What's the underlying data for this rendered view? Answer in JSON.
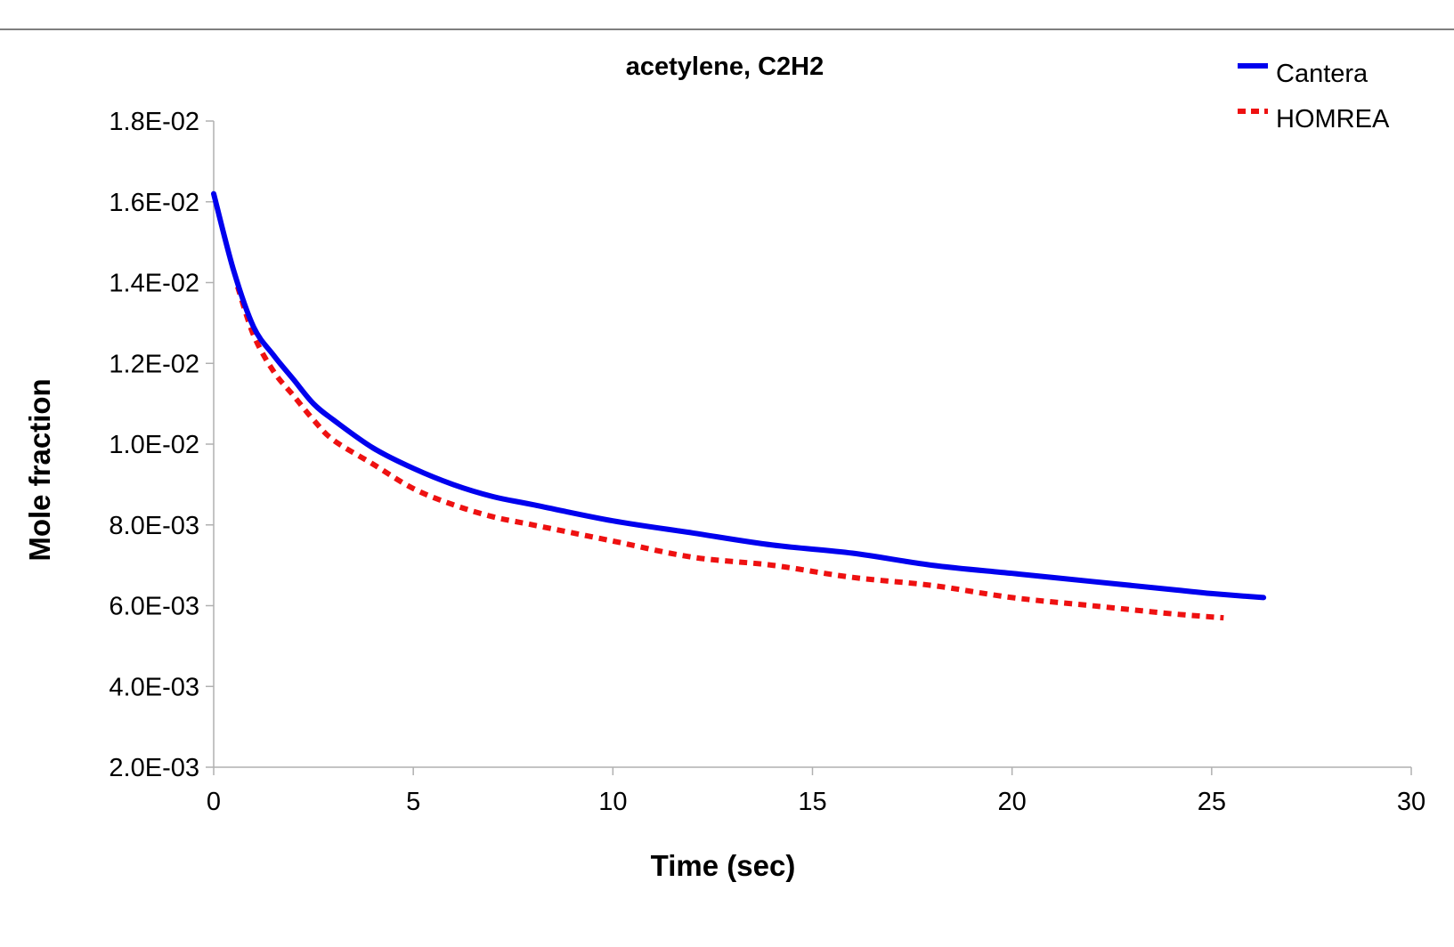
{
  "chart_data": {
    "type": "line",
    "title": "acetylene, C2H2",
    "xlabel": "Time (sec)",
    "ylabel": "Mole fraction",
    "xlim": [
      0,
      30
    ],
    "ylim": [
      0.002,
      0.018
    ],
    "x_ticks": [
      0,
      5,
      10,
      15,
      20,
      25,
      30
    ],
    "x_tick_labels": [
      "0",
      "5",
      "10",
      "15",
      "20",
      "25",
      "30"
    ],
    "y_ticks": [
      0.002,
      0.004,
      0.006,
      0.008,
      0.01,
      0.012,
      0.014,
      0.016,
      0.018
    ],
    "y_tick_labels": [
      "2.0E-03",
      "4.0E-03",
      "6.0E-03",
      "8.0E-03",
      "1.0E-02",
      "1.2E-02",
      "1.4E-02",
      "1.6E-02",
      "1.8E-02"
    ],
    "grid": false,
    "legend_position": "top-right",
    "series": [
      {
        "name": "Cantera",
        "color": "#0000ee",
        "line_style": "solid",
        "x": [
          0,
          0.5,
          1,
          1.5,
          2,
          2.5,
          3,
          4,
          5,
          6,
          7,
          8,
          10,
          12,
          14,
          16,
          18,
          20,
          22,
          24,
          25,
          26.3
        ],
        "y": [
          0.0162,
          0.0143,
          0.0129,
          0.0122,
          0.0116,
          0.011,
          0.0106,
          0.0099,
          0.0094,
          0.009,
          0.0087,
          0.0085,
          0.0081,
          0.0078,
          0.0075,
          0.0073,
          0.007,
          0.0068,
          0.0066,
          0.0064,
          0.0063,
          0.0062
        ]
      },
      {
        "name": "HOMREA",
        "color": "#ee1111",
        "line_style": "dashed",
        "x": [
          0.6,
          1,
          1.5,
          2,
          2.5,
          3,
          4,
          5,
          6,
          7,
          8,
          10,
          12,
          14,
          16,
          18,
          20,
          22,
          24,
          25.3
        ],
        "y": [
          0.0139,
          0.0127,
          0.0118,
          0.0112,
          0.0106,
          0.0101,
          0.0095,
          0.0089,
          0.0085,
          0.0082,
          0.008,
          0.0076,
          0.0072,
          0.007,
          0.0067,
          0.0065,
          0.0062,
          0.006,
          0.0058,
          0.0057
        ]
      }
    ]
  }
}
